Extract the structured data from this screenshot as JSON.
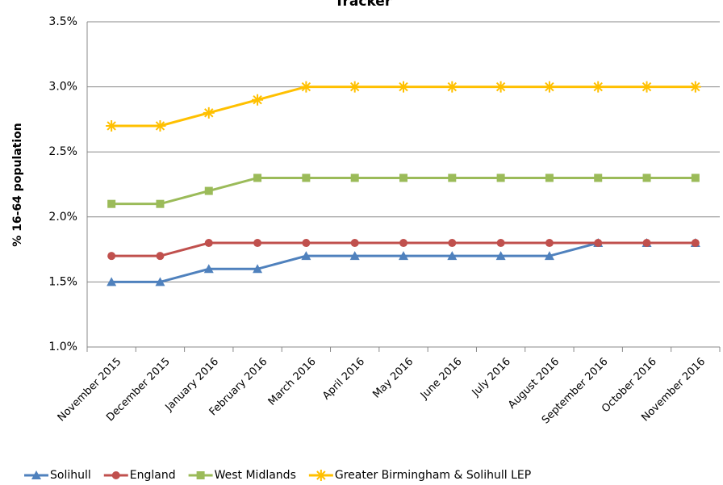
{
  "chart_data": {
    "type": "line",
    "title": "Tracker",
    "y_label": "% 16-64 population",
    "categories": [
      "November 2015",
      "December 2015",
      "January 2016",
      "February 2016",
      "March 2016",
      "April 2016",
      "May 2016",
      "June 2016",
      "July 2016",
      "August 2016",
      "September 2016",
      "October 2016",
      "November 2016"
    ],
    "series": [
      {
        "name": "Solihull",
        "color": "#4f81bd",
        "marker": "triangle",
        "values": [
          1.5,
          1.5,
          1.6,
          1.6,
          1.7,
          1.7,
          1.7,
          1.7,
          1.7,
          1.7,
          1.8,
          1.8,
          1.8
        ]
      },
      {
        "name": "England",
        "color": "#c0504d",
        "marker": "circle",
        "values": [
          1.7,
          1.7,
          1.8,
          1.8,
          1.8,
          1.8,
          1.8,
          1.8,
          1.8,
          1.8,
          1.8,
          1.8,
          1.8
        ]
      },
      {
        "name": "West Midlands",
        "color": "#9bbb59",
        "marker": "square",
        "values": [
          2.1,
          2.1,
          2.2,
          2.3,
          2.3,
          2.3,
          2.3,
          2.3,
          2.3,
          2.3,
          2.3,
          2.3,
          2.3
        ]
      },
      {
        "name": "Greater Birmingham & Solihull LEP",
        "color": "#ffc000",
        "marker": "star",
        "values": [
          2.7,
          2.7,
          2.8,
          2.9,
          3.0,
          3.0,
          3.0,
          3.0,
          3.0,
          3.0,
          3.0,
          3.0,
          3.0
        ]
      }
    ],
    "ylim": [
      1.0,
      3.5
    ],
    "yticks": [
      {
        "value": 1.0,
        "label": "1.0%"
      },
      {
        "value": 1.5,
        "label": "1.5%"
      },
      {
        "value": 2.0,
        "label": "2.0%"
      },
      {
        "value": 2.5,
        "label": "2.5%"
      },
      {
        "value": 3.0,
        "label": "3.0%"
      },
      {
        "value": 3.5,
        "label": "3.5%"
      }
    ],
    "grid": true,
    "legend": "bottom"
  }
}
